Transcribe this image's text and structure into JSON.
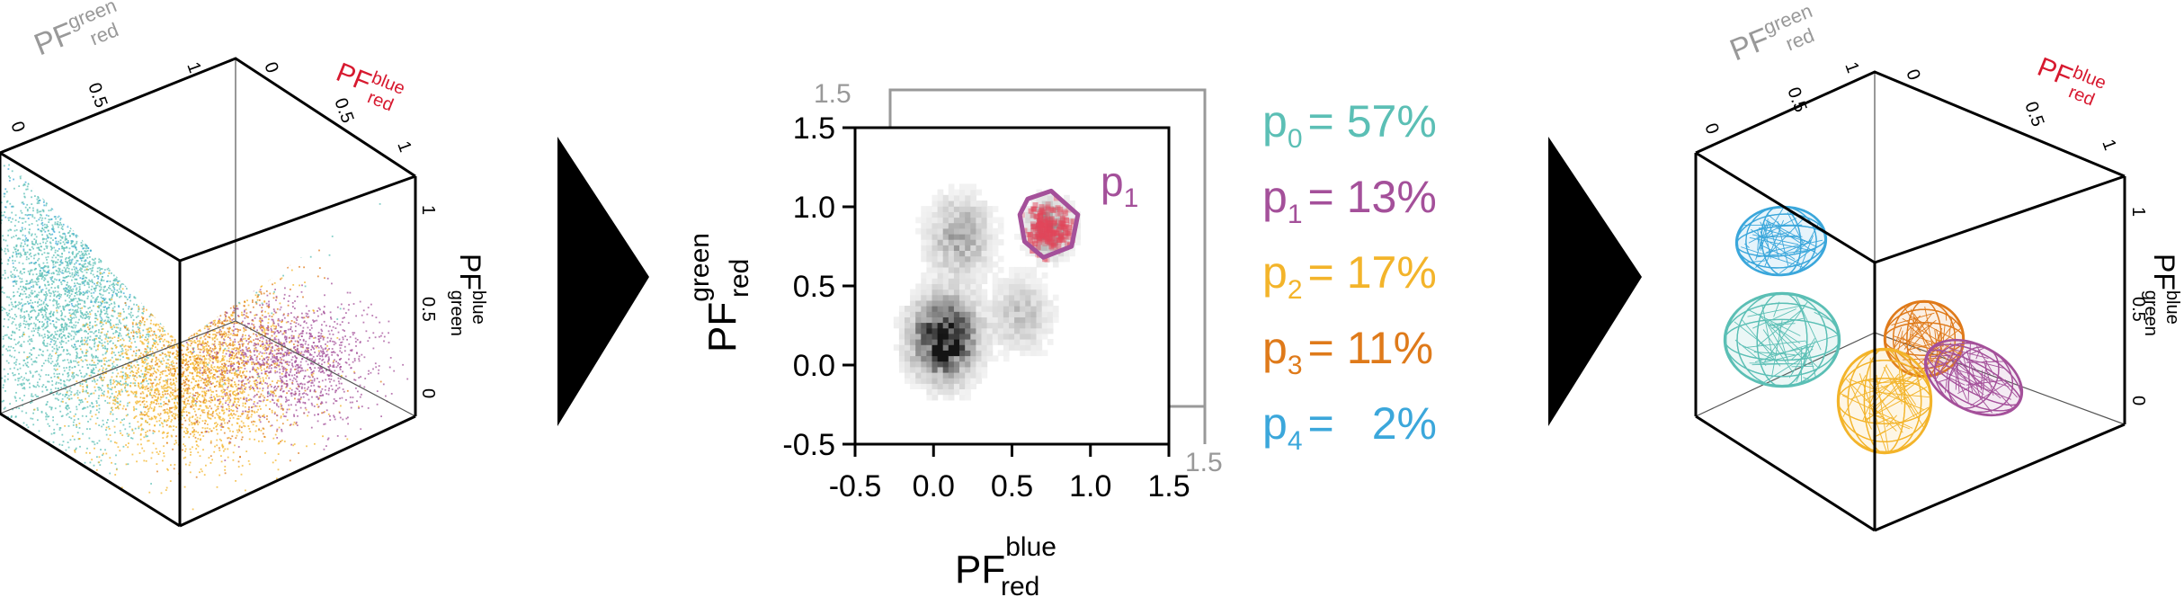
{
  "colors": {
    "p0": "#5bbfb5",
    "p1": "#a4509a",
    "p2": "#f3b42a",
    "p3": "#df7a1a",
    "p4": "#3ba7db",
    "gray_axis": "#999999",
    "red_axis": "#d7192f",
    "arrow": "#000000"
  },
  "left_cube": {
    "axis_green_red": {
      "base": "PF",
      "sup": "green",
      "sub": "red"
    },
    "axis_blue_red": {
      "base": "PF",
      "sup": "blue",
      "sub": "red"
    },
    "axis_blue_green": {
      "base": "PF",
      "sup": "blue",
      "sub": "green"
    },
    "ticks_green_red": [
      "0",
      "0.5",
      "1"
    ],
    "ticks_blue_red": [
      "0",
      "0.5",
      "1"
    ],
    "ticks_blue_green": [
      "1",
      "0.5",
      "0"
    ]
  },
  "right_cube": {
    "axis_green_red": {
      "base": "PF",
      "sup": "green",
      "sub": "red"
    },
    "axis_blue_red": {
      "base": "PF",
      "sup": "blue",
      "sub": "red"
    },
    "axis_blue_green": {
      "base": "PF",
      "sup": "blue",
      "sub": "green"
    },
    "ticks_green_red": [
      "0",
      "0.5",
      "1"
    ],
    "ticks_blue_red": [
      "0",
      "0.5",
      "1"
    ],
    "ticks_blue_green": [
      "1",
      "0.5",
      "0"
    ]
  },
  "chart_data": {
    "type": "heatmap",
    "title": "",
    "xlabel": {
      "base": "PF",
      "sup": "blue",
      "sub": "red"
    },
    "ylabel": {
      "base": "PF",
      "sup": "green",
      "sub": "red"
    },
    "xlim": [
      -0.5,
      1.5
    ],
    "ylim": [
      -0.5,
      1.5
    ],
    "xticks": [
      "-0.5",
      "0.0",
      "0.5",
      "1.0",
      "1.5"
    ],
    "yticks": [
      "-0.5",
      "0.0",
      "0.5",
      "1.0",
      "1.5"
    ],
    "offset_axis_label": "1.5",
    "offset_axis_label_bottom": "1.5",
    "density_clusters": [
      {
        "x": 0.05,
        "y": 0.15,
        "spread": 0.13,
        "weight": 1.0
      },
      {
        "x": 0.15,
        "y": 0.8,
        "spread": 0.13,
        "weight": 0.35
      },
      {
        "x": 0.55,
        "y": 0.3,
        "spread": 0.12,
        "weight": 0.25
      },
      {
        "x": 0.72,
        "y": 0.85,
        "spread": 0.09,
        "weight": 0.45
      }
    ],
    "gate": {
      "label": "p",
      "label_sub": "1",
      "polygon": [
        [
          0.6,
          1.05
        ],
        [
          0.75,
          1.1
        ],
        [
          0.92,
          0.95
        ],
        [
          0.88,
          0.75
        ],
        [
          0.7,
          0.68
        ],
        [
          0.58,
          0.78
        ],
        [
          0.55,
          0.95
        ]
      ]
    }
  },
  "populations": [
    {
      "name": "p",
      "sub": "0",
      "eq": "=",
      "value": "57%",
      "color": "#5bbfb5"
    },
    {
      "name": "p",
      "sub": "1",
      "eq": "=",
      "value": "13%",
      "color": "#a4509a"
    },
    {
      "name": "p",
      "sub": "2",
      "eq": "=",
      "value": "17%",
      "color": "#f3b42a"
    },
    {
      "name": "p",
      "sub": "3",
      "eq": "=",
      "value": "11%",
      "color": "#df7a1a"
    },
    {
      "name": "p",
      "sub": "4",
      "eq": "=",
      "value": "2%",
      "color": "#3ba7db"
    }
  ]
}
